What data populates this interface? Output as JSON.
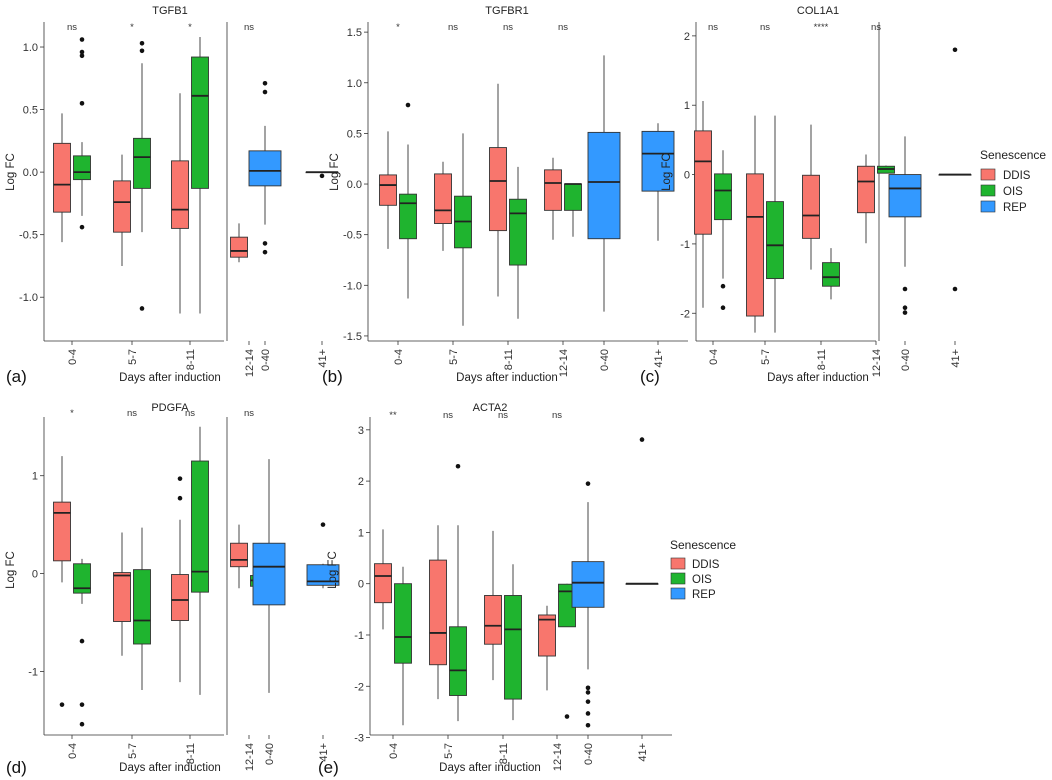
{
  "figure": {
    "colors": {
      "DDIS": "#f8766d",
      "OIS": "#1fb42f",
      "REP": "#3399ff",
      "stroke": "#333333"
    }
  },
  "chart_data": [
    {
      "panel_label": "(a)",
      "title": "TGFB1",
      "type": "boxplot",
      "xlabel": "Days after induction",
      "ylabel": "Log FC",
      "ylim": [
        -1.35,
        1.2
      ],
      "yticks": [
        1.0,
        0.5,
        0.0,
        -0.5,
        -1.0
      ],
      "ytick_labels": [
        "1.0",
        "0.5",
        "0.0",
        "-0.5",
        "-1.0"
      ],
      "groups_left": [
        "0-4",
        "5-7",
        "8-11",
        "12-14"
      ],
      "groups_right": [
        "0-40",
        "41+"
      ],
      "sig": [
        "ns",
        "*",
        "*",
        "ns"
      ],
      "boxes": [
        {
          "g": "0-4",
          "s": "DDIS",
          "min": -0.56,
          "q1": -0.32,
          "med": -0.1,
          "q3": 0.23,
          "max": 0.47,
          "out": []
        },
        {
          "g": "0-4",
          "s": "OIS",
          "min": -0.35,
          "q1": -0.06,
          "med": 0.0,
          "q3": 0.13,
          "max": 0.24,
          "out": [
            -0.44,
            0.55,
            0.93,
            0.96,
            1.06
          ]
        },
        {
          "g": "5-7",
          "s": "DDIS",
          "min": -0.75,
          "q1": -0.48,
          "med": -0.24,
          "q3": -0.07,
          "max": 0.14,
          "out": []
        },
        {
          "g": "5-7",
          "s": "OIS",
          "min": -0.48,
          "q1": -0.13,
          "med": 0.12,
          "q3": 0.27,
          "max": 0.87,
          "out": [
            -1.09,
            0.97,
            1.03
          ]
        },
        {
          "g": "8-11",
          "s": "DDIS",
          "min": -1.13,
          "q1": -0.45,
          "med": -0.3,
          "q3": 0.09,
          "max": 0.63,
          "out": []
        },
        {
          "g": "8-11",
          "s": "OIS",
          "min": -1.13,
          "q1": -0.13,
          "med": 0.61,
          "q3": 0.92,
          "max": 1.08,
          "out": []
        },
        {
          "g": "12-14",
          "s": "DDIS",
          "min": -0.72,
          "q1": -0.68,
          "med": -0.63,
          "q3": -0.52,
          "max": -0.41,
          "out": []
        },
        {
          "g": "12-14",
          "s": "OIS",
          "min": 0.0,
          "q1": 0.0,
          "med": 0.0,
          "q3": 0.0,
          "max": 0.0,
          "out": []
        },
        {
          "g": "0-40",
          "s": "REP",
          "min": -0.42,
          "q1": -0.11,
          "med": 0.01,
          "q3": 0.17,
          "max": 0.37,
          "out": [
            -0.57,
            -0.64,
            0.64,
            0.71
          ]
        },
        {
          "g": "41+",
          "s": "REP",
          "min": 0.0,
          "q1": 0.0,
          "med": 0.0,
          "q3": 0.0,
          "max": 0.0,
          "out": [
            -0.03
          ]
        }
      ]
    },
    {
      "panel_label": "(b)",
      "title": "TGFBR1",
      "type": "boxplot",
      "xlabel": "Days after induction",
      "ylabel": "Log FC",
      "ylim": [
        -1.55,
        1.6
      ],
      "yticks": [
        1.5,
        1.0,
        0.5,
        0.0,
        -0.5,
        -1.0,
        -1.5
      ],
      "ytick_labels": [
        "1.5",
        "1.0",
        "0.5",
        "0.0",
        "-0.5",
        "-1.0",
        "-1.5"
      ],
      "groups_left": [
        "0-4",
        "5-7",
        "8-11",
        "12-14"
      ],
      "groups_right": [
        "0-40",
        "41+"
      ],
      "sig": [
        "*",
        "ns",
        "ns",
        "ns"
      ],
      "boxes": [
        {
          "g": "0-4",
          "s": "DDIS",
          "min": -0.64,
          "q1": -0.21,
          "med": -0.01,
          "q3": 0.09,
          "max": 0.52,
          "out": []
        },
        {
          "g": "0-4",
          "s": "OIS",
          "min": -1.13,
          "q1": -0.54,
          "med": -0.19,
          "q3": -0.1,
          "max": 0.39,
          "out": [
            0.78
          ]
        },
        {
          "g": "5-7",
          "s": "DDIS",
          "min": -0.66,
          "q1": -0.39,
          "med": -0.26,
          "q3": 0.1,
          "max": 0.22,
          "out": []
        },
        {
          "g": "5-7",
          "s": "OIS",
          "min": -1.4,
          "q1": -0.63,
          "med": -0.37,
          "q3": -0.12,
          "max": 0.5,
          "out": []
        },
        {
          "g": "8-11",
          "s": "DDIS",
          "min": -1.11,
          "q1": -0.46,
          "med": 0.03,
          "q3": 0.36,
          "max": 0.99,
          "out": []
        },
        {
          "g": "8-11",
          "s": "OIS",
          "min": -1.33,
          "q1": -0.8,
          "med": -0.29,
          "q3": -0.15,
          "max": 0.17,
          "out": []
        },
        {
          "g": "12-14",
          "s": "DDIS",
          "min": -0.55,
          "q1": -0.26,
          "med": 0.01,
          "q3": 0.14,
          "max": 0.26,
          "out": []
        },
        {
          "g": "12-14",
          "s": "OIS",
          "min": -0.52,
          "q1": -0.26,
          "med": 0.0,
          "q3": 0.0,
          "max": 0.0,
          "out": []
        },
        {
          "g": "0-40",
          "s": "REP",
          "min": -1.26,
          "q1": -0.54,
          "med": 0.02,
          "q3": 0.51,
          "max": 1.27,
          "out": []
        },
        {
          "g": "41+",
          "s": "REP",
          "min": -0.56,
          "q1": -0.07,
          "med": 0.3,
          "q3": 0.52,
          "max": 0.6,
          "out": []
        }
      ]
    },
    {
      "panel_label": "(c)",
      "title": "COL1A1",
      "type": "boxplot",
      "xlabel": "Days after induction",
      "ylabel": "Log FC",
      "ylim": [
        -2.4,
        2.2
      ],
      "yticks": [
        2,
        1,
        0,
        -1,
        -2
      ],
      "ytick_labels": [
        "2",
        "1",
        "0",
        "-1",
        "-2"
      ],
      "groups_left": [
        "0-4",
        "5-7",
        "8-11",
        "12-14"
      ],
      "groups_right": [
        "0-40",
        "41+"
      ],
      "sig": [
        "ns",
        "ns",
        "****",
        "ns"
      ],
      "boxes": [
        {
          "g": "0-4",
          "s": "DDIS",
          "min": -1.92,
          "q1": -0.86,
          "med": 0.19,
          "q3": 0.63,
          "max": 1.06,
          "out": []
        },
        {
          "g": "0-4",
          "s": "OIS",
          "min": -1.5,
          "q1": -0.65,
          "med": -0.23,
          "q3": 0.01,
          "max": 0.35,
          "out": [
            -1.61,
            -1.92
          ]
        },
        {
          "g": "5-7",
          "s": "DDIS",
          "min": -2.28,
          "q1": -2.04,
          "med": -0.61,
          "q3": 0.01,
          "max": 0.85,
          "out": []
        },
        {
          "g": "5-7",
          "s": "OIS",
          "min": -2.28,
          "q1": -1.5,
          "med": -1.02,
          "q3": -0.39,
          "max": 0.85,
          "out": []
        },
        {
          "g": "8-11",
          "s": "DDIS",
          "min": -1.37,
          "q1": -0.92,
          "med": -0.59,
          "q3": -0.01,
          "max": 0.72,
          "out": []
        },
        {
          "g": "8-11",
          "s": "OIS",
          "min": -1.8,
          "q1": -1.61,
          "med": -1.48,
          "q3": -1.27,
          "max": -1.06,
          "out": []
        },
        {
          "g": "12-14",
          "s": "DDIS",
          "min": -0.99,
          "q1": -0.55,
          "med": -0.1,
          "q3": 0.12,
          "max": 0.29,
          "out": []
        },
        {
          "g": "12-14",
          "s": "OIS",
          "min": 0.02,
          "q1": 0.02,
          "med": 0.08,
          "q3": 0.12,
          "max": 0.13,
          "out": []
        },
        {
          "g": "0-40",
          "s": "REP",
          "min": -1.33,
          "q1": -0.61,
          "med": -0.2,
          "q3": 0.0,
          "max": 0.55,
          "out": [
            -1.65,
            -1.92,
            -1.99
          ]
        },
        {
          "g": "41+",
          "s": "REP",
          "min": 0.0,
          "q1": 0.0,
          "med": 0.0,
          "q3": 0.0,
          "max": 0.0,
          "out": [
            1.8,
            -1.65
          ]
        }
      ]
    },
    {
      "panel_label": "(d)",
      "title": "PDGFA",
      "type": "boxplot",
      "xlabel": "Days after induction",
      "ylabel": "Log FC",
      "ylim": [
        -1.65,
        1.6
      ],
      "yticks": [
        1,
        0,
        -1
      ],
      "ytick_labels": [
        "1",
        "0",
        "-1"
      ],
      "groups_left": [
        "0-4",
        "5-7",
        "8-11",
        "12-14"
      ],
      "groups_right": [
        "0-40",
        "41+"
      ],
      "sig": [
        "*",
        "ns",
        "ns",
        "ns"
      ],
      "boxes": [
        {
          "g": "0-4",
          "s": "DDIS",
          "min": -0.09,
          "q1": 0.13,
          "med": 0.62,
          "q3": 0.73,
          "max": 1.2,
          "out": [
            -1.34
          ]
        },
        {
          "g": "0-4",
          "s": "OIS",
          "min": -0.31,
          "q1": -0.2,
          "med": -0.15,
          "q3": 0.1,
          "max": 0.15,
          "out": [
            -0.69,
            -1.34,
            -1.54
          ]
        },
        {
          "g": "5-7",
          "s": "DDIS",
          "min": -0.84,
          "q1": -0.49,
          "med": -0.02,
          "q3": 0.01,
          "max": 0.42,
          "out": []
        },
        {
          "g": "5-7",
          "s": "OIS",
          "min": -1.19,
          "q1": -0.72,
          "med": -0.48,
          "q3": 0.04,
          "max": 0.47,
          "out": []
        },
        {
          "g": "8-11",
          "s": "DDIS",
          "min": -1.11,
          "q1": -0.48,
          "med": -0.27,
          "q3": -0.01,
          "max": 0.55,
          "out": [
            0.77,
            0.97
          ]
        },
        {
          "g": "8-11",
          "s": "OIS",
          "min": -1.24,
          "q1": -0.19,
          "med": 0.02,
          "q3": 1.15,
          "max": 1.5,
          "out": []
        },
        {
          "g": "12-14",
          "s": "DDIS",
          "min": -0.15,
          "q1": 0.07,
          "med": 0.14,
          "q3": 0.31,
          "max": 0.5,
          "out": []
        },
        {
          "g": "12-14",
          "s": "OIS",
          "min": -0.16,
          "q1": -0.13,
          "med": -0.07,
          "q3": -0.02,
          "max": 0.0,
          "out": []
        },
        {
          "g": "0-40",
          "s": "REP",
          "min": -1.22,
          "q1": -0.32,
          "med": 0.07,
          "q3": 0.31,
          "max": 1.17,
          "out": []
        },
        {
          "g": "41+",
          "s": "REP",
          "min": -0.15,
          "q1": -0.12,
          "med": -0.08,
          "q3": 0.09,
          "max": 0.1,
          "out": [
            0.5
          ]
        }
      ]
    },
    {
      "panel_label": "(e)",
      "title": "ACTA2",
      "type": "boxplot",
      "xlabel": "Days after induction",
      "ylabel": "Log FC",
      "ylim": [
        -2.95,
        3.25
      ],
      "yticks": [
        3,
        2,
        1,
        0,
        -1,
        -2,
        -3
      ],
      "ytick_labels": [
        "3",
        "2",
        "1",
        "0",
        "-1",
        "-2",
        "-3"
      ],
      "groups_left": [
        "0-4",
        "5-7",
        "8-11",
        "12-14"
      ],
      "groups_right": [
        "0-40",
        "41+"
      ],
      "sig": [
        "**",
        "ns",
        "ns",
        "ns"
      ],
      "boxes": [
        {
          "g": "0-4",
          "s": "DDIS",
          "min": -0.89,
          "q1": -0.37,
          "med": 0.15,
          "q3": 0.39,
          "max": 1.06,
          "out": []
        },
        {
          "g": "0-4",
          "s": "OIS",
          "min": -2.76,
          "q1": -1.55,
          "med": -1.04,
          "q3": 0.0,
          "max": 0.33,
          "out": []
        },
        {
          "g": "5-7",
          "s": "DDIS",
          "min": -2.25,
          "q1": -1.58,
          "med": -0.96,
          "q3": 0.46,
          "max": 1.14,
          "out": []
        },
        {
          "g": "5-7",
          "s": "OIS",
          "min": -2.68,
          "q1": -2.18,
          "med": -1.69,
          "q3": -0.84,
          "max": 1.14,
          "out": [
            2.29
          ]
        },
        {
          "g": "8-11",
          "s": "DDIS",
          "min": -1.88,
          "q1": -1.18,
          "med": -0.82,
          "q3": -0.23,
          "max": 1.03,
          "out": []
        },
        {
          "g": "8-11",
          "s": "OIS",
          "min": -2.66,
          "q1": -2.25,
          "med": -0.89,
          "q3": -0.23,
          "max": 0.38,
          "out": []
        },
        {
          "g": "12-14",
          "s": "DDIS",
          "min": -2.08,
          "q1": -1.41,
          "med": -0.7,
          "q3": -0.61,
          "max": -0.43,
          "out": []
        },
        {
          "g": "12-14",
          "s": "OIS",
          "min": -0.84,
          "q1": -0.84,
          "med": -0.15,
          "q3": -0.01,
          "max": 0.0,
          "out": [
            -2.59
          ]
        },
        {
          "g": "0-40",
          "s": "REP",
          "min": -1.67,
          "q1": -0.46,
          "med": 0.02,
          "q3": 0.43,
          "max": 1.59,
          "out": [
            -2.03,
            -2.12,
            -2.3,
            -2.53,
            -2.76,
            1.95
          ]
        },
        {
          "g": "41+",
          "s": "REP",
          "min": 0.0,
          "q1": 0.0,
          "med": 0.0,
          "q3": 0.0,
          "max": 0.0,
          "out": [
            2.81
          ]
        }
      ]
    }
  ],
  "legend_top": {
    "title": "Senescence",
    "items": [
      "DDIS",
      "OIS",
      "REP"
    ]
  },
  "legend_bottom": {
    "title": "Senescence",
    "items": [
      "DDIS",
      "OIS",
      "REP"
    ]
  }
}
